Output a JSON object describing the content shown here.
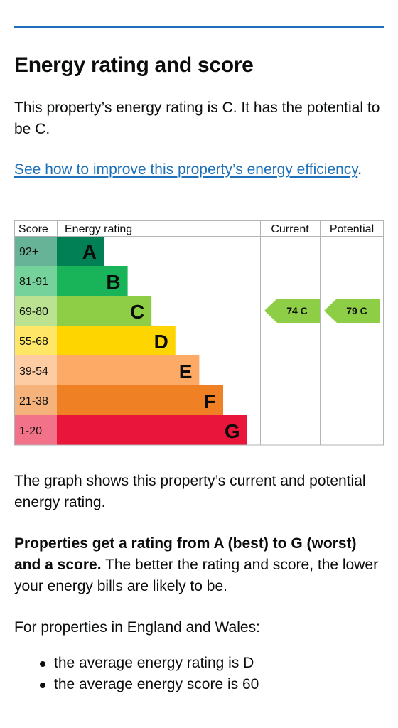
{
  "heading": "Energy rating and score",
  "intro": "This property’s energy rating is C. It has the potential to be C.",
  "improve_link": "See how to improve this property’s energy efficiency",
  "improve_suffix": ".",
  "chart_data": {
    "type": "bar",
    "headers": {
      "score": "Score",
      "rating": "Energy rating",
      "current": "Current",
      "potential": "Potential"
    },
    "bands": [
      {
        "range": "92+",
        "letter": "A",
        "color": "#008054",
        "light": "#66b398"
      },
      {
        "range": "81-91",
        "letter": "B",
        "color": "#19b459",
        "light": "#75d29b"
      },
      {
        "range": "69-80",
        "letter": "C",
        "color": "#8dce46",
        "light": "#bbe290"
      },
      {
        "range": "55-68",
        "letter": "D",
        "color": "#ffd500",
        "light": "#ffe666"
      },
      {
        "range": "39-54",
        "letter": "E",
        "color": "#fcaa65",
        "light": "#fdcca3"
      },
      {
        "range": "21-38",
        "letter": "F",
        "color": "#ef8023",
        "light": "#f5b37b"
      },
      {
        "range": "1-20",
        "letter": "G",
        "color": "#e9153b",
        "light": "#f27389"
      }
    ],
    "current": {
      "score": 74,
      "band": "C",
      "label": "74 C"
    },
    "potential": {
      "score": 79,
      "band": "C",
      "label": "79 C"
    }
  },
  "graph_note": "The graph shows this property’s current and potential energy rating.",
  "ratings_bold": "Properties get a rating from A (best) to G (worst) and a score.",
  "ratings_rest": " The better the rating and score, the lower your energy bills are likely to be.",
  "region_intro": "For properties in England and Wales:",
  "bullets": [
    "the average energy rating is D",
    "the average energy score is 60"
  ]
}
